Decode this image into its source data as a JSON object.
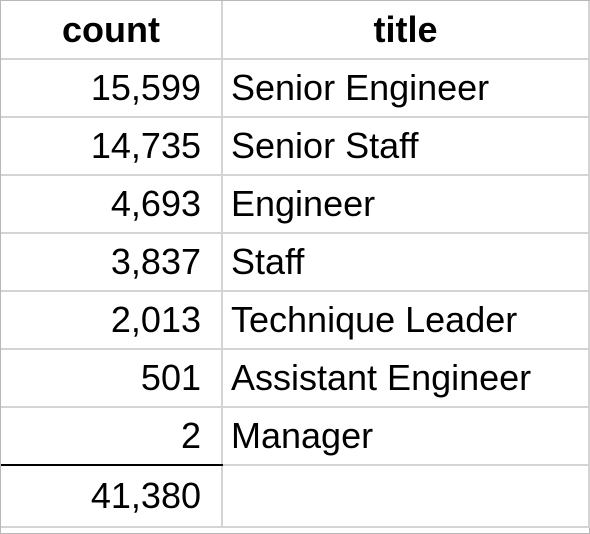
{
  "headers": {
    "count": "count",
    "title": "title"
  },
  "rows": [
    {
      "count": "15,599",
      "title": "Senior Engineer"
    },
    {
      "count": "14,735",
      "title": "Senior Staff"
    },
    {
      "count": "4,693",
      "title": "Engineer"
    },
    {
      "count": "3,837",
      "title": "Staff"
    },
    {
      "count": "2,013",
      "title": "Technique Leader"
    },
    {
      "count": "501",
      "title": "Assistant Engineer"
    },
    {
      "count": "2",
      "title": "Manager"
    }
  ],
  "total": {
    "count": "41,380",
    "title": ""
  }
}
